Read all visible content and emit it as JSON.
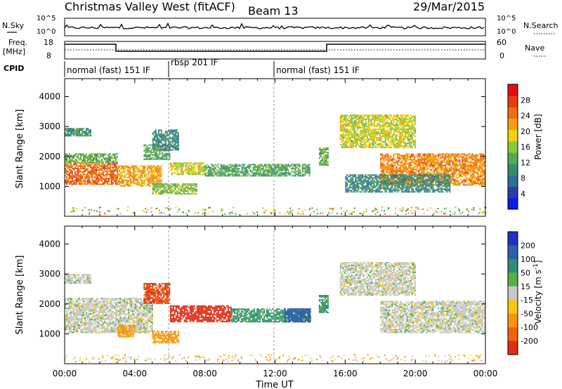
{
  "header": {
    "station": "Christmas Valley West (fitACF)",
    "beam": "Beam 13",
    "date": "29/Mar/2015"
  },
  "noise_panel": {
    "left_label": "N.Sky",
    "right_label": "N.Search",
    "left_ticks": [
      "10^5",
      "10^0"
    ],
    "right_ticks": [
      "10^5",
      "10^0"
    ]
  },
  "freq_panel": {
    "left_label": "Freq.",
    "left_unit": "[MHz]",
    "right_label": "Nave",
    "left_ticks": [
      "18",
      "8"
    ],
    "right_ticks": [
      "60",
      "0"
    ]
  },
  "cpid_panel": {
    "label": "CPID",
    "segments": [
      {
        "start": 0,
        "end": 6,
        "text": "normal (fast) 151 IF"
      },
      {
        "start": 6,
        "end": 12,
        "text": "rbsp 201 IF"
      },
      {
        "start": 12,
        "end": 24,
        "text": "normal (fast) 151 IF"
      }
    ]
  },
  "axes": {
    "ylabel": "Slant Range [km]",
    "xlabel": "Time UT",
    "yticks": [
      "1000",
      "2000",
      "3000",
      "4000"
    ],
    "xticks": [
      "00:00",
      "04:00",
      "08:00",
      "12:00",
      "16:00",
      "20:00",
      "00:00"
    ]
  },
  "power_scale": {
    "label": "Power [dB]",
    "ticks": [
      "4",
      "8",
      "12",
      "16",
      "20",
      "24",
      "28"
    ],
    "colors": [
      "#0a1ee6",
      "#2d3ca8",
      "#2e6e9a",
      "#3a8d6a",
      "#55a85a",
      "#8cc83c",
      "#f0d20a",
      "#f5a00f",
      "#f06e14",
      "#e63c14",
      "#e10f0f"
    ]
  },
  "velocity_scale": {
    "label": "Velocity [m s",
    "label_sup": "-1",
    "label_end": "]",
    "ticks": [
      "200",
      "100",
      "50",
      "15",
      "-15",
      "-50",
      "-100",
      "-200"
    ],
    "colors": [
      "#2030c0",
      "#2e5fa8",
      "#2f8c78",
      "#55b04a",
      "#c8c8c8",
      "#f5c814",
      "#f5960f",
      "#f0640f",
      "#e12d14"
    ]
  },
  "chart_data": [
    {
      "type": "heatmap",
      "title": "Power",
      "xlabel": "Time UT",
      "ylabel": "Slant Range [km]",
      "xlim": [
        0,
        24
      ],
      "ylim": [
        0,
        4600
      ],
      "colorbar": {
        "label": "Power [dB]",
        "range": [
          0,
          32
        ]
      },
      "blobs": [
        {
          "t0": 0.0,
          "t1": 3.0,
          "r0": 1050,
          "r1": 1800,
          "level": 26
        },
        {
          "t0": 0.0,
          "t1": 3.0,
          "r0": 1800,
          "r1": 2100,
          "level": 14
        },
        {
          "t0": 0.0,
          "t1": 1.5,
          "r0": 2700,
          "r1": 2950,
          "level": 10
        },
        {
          "t0": 3.0,
          "t1": 5.5,
          "r0": 1000,
          "r1": 1700,
          "level": 22
        },
        {
          "t0": 4.5,
          "t1": 6.0,
          "r0": 1900,
          "r1": 2400,
          "level": 12
        },
        {
          "t0": 5.0,
          "t1": 6.5,
          "r0": 2200,
          "r1": 2900,
          "level": 9
        },
        {
          "t0": 6.0,
          "t1": 8.0,
          "r0": 1400,
          "r1": 1800,
          "level": 18
        },
        {
          "t0": 5.0,
          "t1": 7.5,
          "r0": 750,
          "r1": 1100,
          "level": 15
        },
        {
          "t0": 8.0,
          "t1": 14.0,
          "r0": 1350,
          "r1": 1750,
          "level": 12
        },
        {
          "t0": 14.5,
          "t1": 15.0,
          "r0": 1700,
          "r1": 2300,
          "level": 14
        },
        {
          "t0": 15.7,
          "t1": 20.0,
          "r0": 2300,
          "r1": 3400,
          "level": 18
        },
        {
          "t0": 18.0,
          "t1": 24.0,
          "r0": 1050,
          "r1": 2100,
          "level": 24
        },
        {
          "t0": 16.0,
          "t1": 22.0,
          "r0": 800,
          "r1": 1400,
          "level": 9
        }
      ]
    },
    {
      "type": "heatmap",
      "title": "Velocity",
      "xlabel": "Time UT",
      "ylabel": "Slant Range [km]",
      "xlim": [
        0,
        24
      ],
      "ylim": [
        0,
        4600
      ],
      "colorbar": {
        "label": "Velocity [m s-1]",
        "range": [
          -200,
          200
        ]
      },
      "blobs": [
        {
          "t0": 0.0,
          "t1": 5.0,
          "r0": 1050,
          "r1": 2200,
          "level": 0
        },
        {
          "t0": 0.0,
          "t1": 1.5,
          "r0": 2700,
          "r1": 3000,
          "level": 0
        },
        {
          "t0": 3.0,
          "t1": 4.0,
          "r0": 900,
          "r1": 1300,
          "level": -60
        },
        {
          "t0": 4.5,
          "t1": 6.0,
          "r0": 2000,
          "r1": 2700,
          "level": -150
        },
        {
          "t0": 5.0,
          "t1": 6.5,
          "r0": 700,
          "r1": 1100,
          "level": -80
        },
        {
          "t0": 6.0,
          "t1": 9.5,
          "r0": 1400,
          "r1": 1950,
          "level": -200
        },
        {
          "t0": 9.5,
          "t1": 14.0,
          "r0": 1400,
          "r1": 1850,
          "level": 40
        },
        {
          "t0": 12.5,
          "t1": 14.0,
          "r0": 1400,
          "r1": 1850,
          "level": 120
        },
        {
          "t0": 14.5,
          "t1": 15.0,
          "r0": 1700,
          "r1": 2300,
          "level": 40
        },
        {
          "t0": 15.7,
          "t1": 20.0,
          "r0": 2300,
          "r1": 3400,
          "level": 0
        },
        {
          "t0": 18.0,
          "t1": 24.0,
          "r0": 1050,
          "r1": 2100,
          "level": 0
        }
      ]
    }
  ]
}
